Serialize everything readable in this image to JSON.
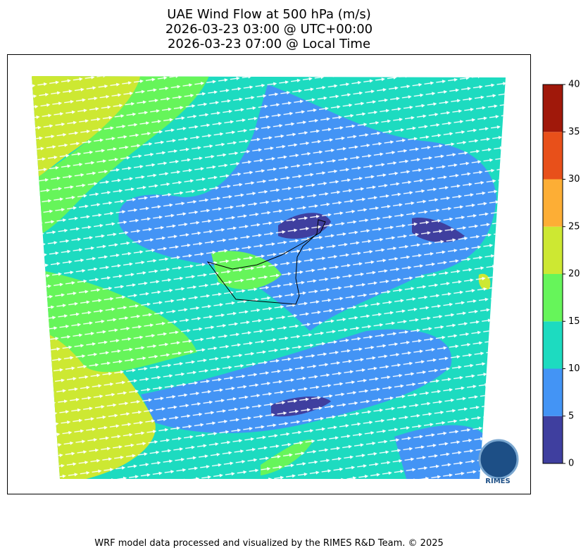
{
  "title": [
    "UAE Wind Flow at 500 hPa (m/s)",
    "2026-03-23 03:00 @ UTC+00:00",
    "2026-03-23 07:00 @ Local Time"
  ],
  "colorbar": {
    "lim": [
      0,
      40
    ],
    "ticks": [
      0,
      5,
      10,
      15,
      20,
      25,
      30,
      35,
      40
    ],
    "colors": [
      "#3f3f9f",
      "#4394f5",
      "#1ddbc0",
      "#66f55a",
      "#cde832",
      "#fdae35",
      "#e8501a",
      "#a0180a"
    ]
  },
  "logo": {
    "label": "RIMES"
  },
  "footer": "WRF model data processed and visualized by the RIMES R&D Team. © 2025"
}
